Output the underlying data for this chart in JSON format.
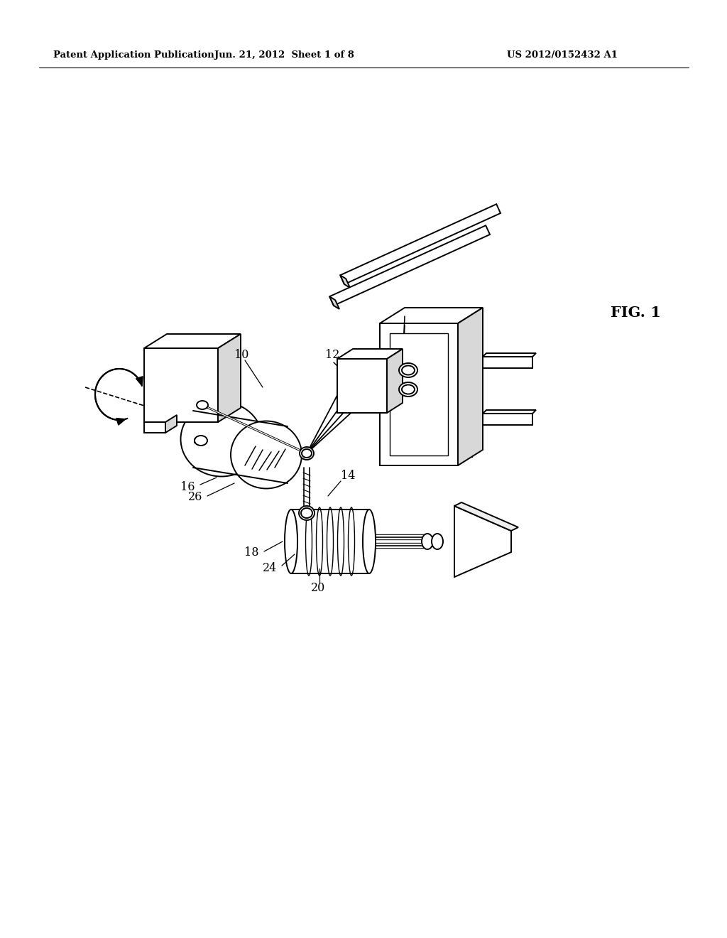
{
  "bg_color": "#ffffff",
  "header_left": "Patent Application Publication",
  "header_center": "Jun. 21, 2012  Sheet 1 of 8",
  "header_right": "US 2012/0152432 A1",
  "fig_label": "FIG. 1",
  "line_color": "#000000",
  "text_color": "#000000",
  "gray_fill": "#d8d8d8",
  "light_gray": "#eeeeee"
}
